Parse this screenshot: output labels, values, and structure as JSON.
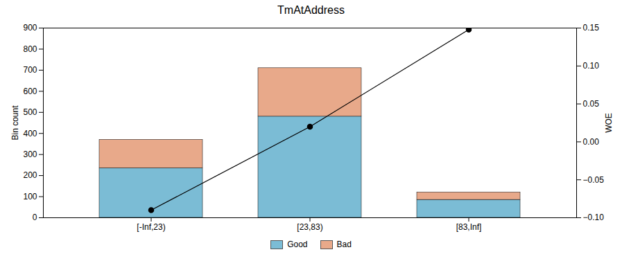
{
  "chart_data": {
    "type": "bar",
    "title": "TmAtAddress",
    "stacked": true,
    "categories": [
      "[-Inf,23)",
      "[23,83)",
      "[83,Inf]"
    ],
    "series": [
      {
        "name": "Good",
        "color": "#7BBCD5",
        "values": [
          235,
          480,
          85
        ]
      },
      {
        "name": "Bad",
        "color": "#E8A98A",
        "values": [
          135,
          230,
          35
        ]
      },
      {
        "type": "line",
        "axis": "y2",
        "color": "#000000",
        "marker": "circle",
        "values": [
          -0.09,
          0.02,
          0.148
        ]
      }
    ],
    "ylabel": "Bin count",
    "y2label": "WOE",
    "ylim": [
      0,
      900
    ],
    "yticks": [
      0,
      100,
      200,
      300,
      400,
      500,
      600,
      700,
      800,
      900
    ],
    "y2lim": [
      -0.1,
      0.15
    ],
    "y2ticks": [
      {
        "value": -0.1,
        "label": "−0.10"
      },
      {
        "value": -0.05,
        "label": "−0.05"
      },
      {
        "value": 0,
        "label": "0.00"
      },
      {
        "value": 0.05,
        "label": "0.05"
      },
      {
        "value": 0.1,
        "label": "0.10"
      },
      {
        "value": 0.15,
        "label": "0.15"
      }
    ],
    "grid": false,
    "legend": "bottom"
  }
}
